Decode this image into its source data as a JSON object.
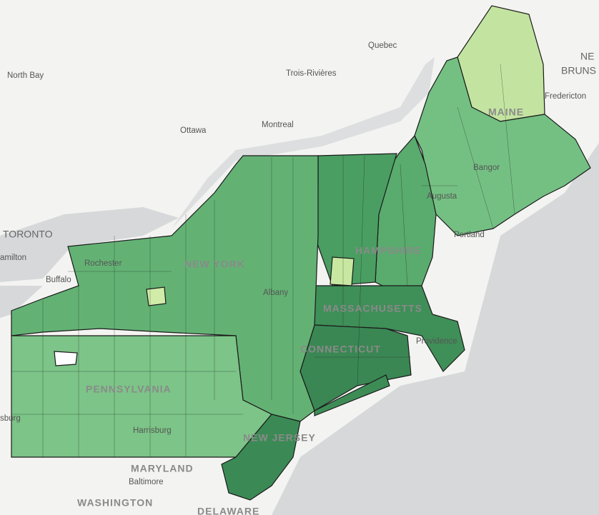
{
  "map": {
    "labels": [
      {
        "text": "Quebec"
      },
      {
        "text": "Trois-Rivières"
      },
      {
        "text": "North Bay"
      },
      {
        "text": "Ottawa"
      },
      {
        "text": "Montreal"
      },
      {
        "text": "NE"
      },
      {
        "text": "BRUNS"
      },
      {
        "text": "Fredericton"
      },
      {
        "text": "MAINE"
      },
      {
        "text": "Bangor"
      },
      {
        "text": "Augusta"
      },
      {
        "text": "Portland"
      },
      {
        "text": "TORONTO"
      },
      {
        "text": "amilton"
      },
      {
        "text": "Buffalo"
      },
      {
        "text": "Rochester"
      },
      {
        "text": "NEW YORK"
      },
      {
        "text": "Albany"
      },
      {
        "text": "HAMPSHIRE"
      },
      {
        "text": "MASSACHUSETTS"
      },
      {
        "text": "Providence"
      },
      {
        "text": "CONNECTICUT"
      },
      {
        "text": "PENNSYLVANIA"
      },
      {
        "text": "Harrisburg"
      },
      {
        "text": "NEW JERSEY"
      },
      {
        "text": "MARYLAND"
      },
      {
        "text": "Baltimore"
      },
      {
        "text": "WASHINGTON"
      },
      {
        "text": "DELAWARE"
      },
      {
        "text": "sburg"
      }
    ]
  }
}
